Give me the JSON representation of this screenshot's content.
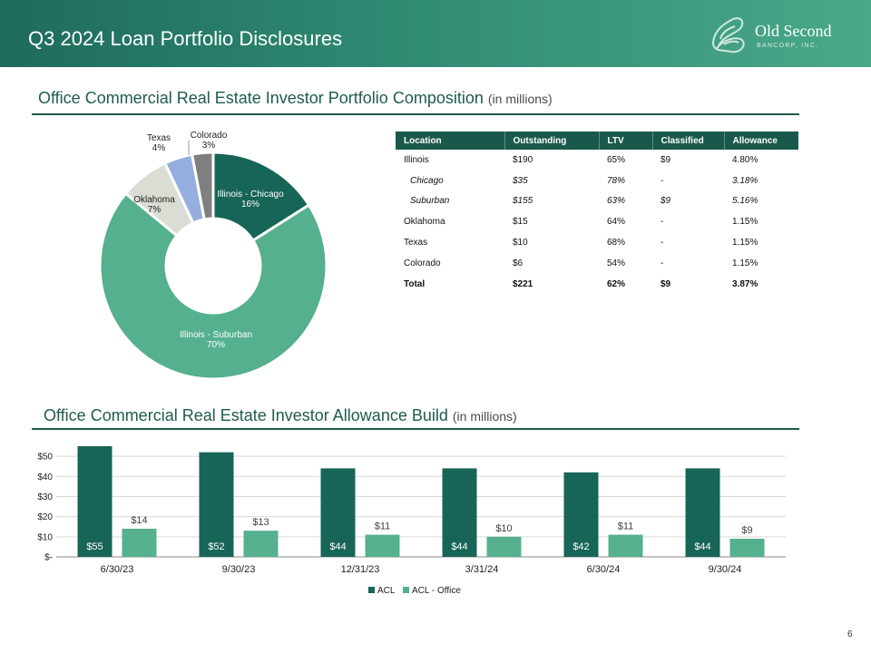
{
  "header": {
    "title": "Q3 2024 Loan Portfolio Disclosures",
    "logo_main": "Old Second",
    "logo_sub": "BANCORP, INC."
  },
  "composition_section": {
    "title": "Office Commercial  Real Estate Investor Portfolio Composition",
    "units": "(in millions)"
  },
  "allowance_section": {
    "title": "Office Commercial  Real Estate Investor Allowance  Build",
    "units": "(in millions)"
  },
  "table": {
    "headers": [
      "Location",
      "Outstanding",
      "LTV",
      "Classified",
      "Allowance"
    ],
    "rows": [
      {
        "style": "normal",
        "cells": [
          "Illinois",
          "$190",
          "65%",
          "$9",
          "4.80%"
        ]
      },
      {
        "style": "sub",
        "cells": [
          "Chicago",
          "$35",
          "78%",
          "-",
          "3.18%"
        ]
      },
      {
        "style": "sub",
        "cells": [
          "Suburban",
          "$155",
          "63%",
          "$9",
          "5.16%"
        ]
      },
      {
        "style": "normal",
        "cells": [
          "Oklahoma",
          "$15",
          "64%",
          "-",
          "1.15%"
        ]
      },
      {
        "style": "normal",
        "cells": [
          "Texas",
          "$10",
          "68%",
          "-",
          "1.15%"
        ]
      },
      {
        "style": "normal",
        "cells": [
          "Colorado",
          "$6",
          "54%",
          "-",
          "1.15%"
        ]
      },
      {
        "style": "total",
        "cells": [
          "Total",
          "$221",
          "62%",
          "$9",
          "3.87%"
        ]
      }
    ]
  },
  "page_number": "6",
  "colors": {
    "header_dark": "#1e6b5c",
    "accent_dark": "#176556",
    "accent_light": "#55b08e",
    "oklahoma": "#d9ddd3",
    "texas": "#95aede",
    "colorado": "#7f7f7f",
    "rule": "#1e5b4f"
  },
  "chart_data": [
    {
      "type": "pie",
      "donut": true,
      "slices": [
        {
          "label": "Illinois  - Chicago",
          "pct_label": "16%",
          "value": 16,
          "color": "#176556",
          "label_color": "#ffffff"
        },
        {
          "label": "Illinois  - Suburban",
          "pct_label": "70%",
          "value": 70,
          "color": "#55b08e",
          "label_color": "#ffffff"
        },
        {
          "label": "Oklahoma",
          "pct_label": "7%",
          "value": 7,
          "color": "#d9ddd3",
          "label_color": "#222222"
        },
        {
          "label": "Texas",
          "pct_label": "4%",
          "value": 4,
          "color": "#95aede",
          "label_color": "#222222"
        },
        {
          "label": "Colorado",
          "pct_label": "3%",
          "value": 3,
          "color": "#7f7f7f",
          "label_color": "#222222"
        }
      ]
    },
    {
      "type": "bar",
      "categories": [
        "6/30/23",
        "9/30/23",
        "12/31/23",
        "3/31/24",
        "6/30/24",
        "9/30/24"
      ],
      "series": [
        {
          "name": "ACL",
          "values": [
            55,
            52,
            44,
            44,
            42,
            44
          ],
          "labels": [
            "$55",
            "$52",
            "$44",
            "$44",
            "$42",
            "$44"
          ],
          "color": "#176556"
        },
        {
          "name": "ACL - Office",
          "values": [
            14,
            13,
            11,
            10,
            11,
            9
          ],
          "labels": [
            "$14",
            "$13",
            "$11",
            "$10",
            "$11",
            "$9"
          ],
          "color": "#55b08e"
        }
      ],
      "yticks": [
        0,
        10,
        20,
        30,
        40,
        50
      ],
      "ytick_labels": [
        "$-",
        "$10",
        "$20",
        "$30",
        "$40",
        "$50"
      ],
      "ylim": [
        0,
        55
      ],
      "grid": true,
      "legend": "bottom"
    }
  ]
}
